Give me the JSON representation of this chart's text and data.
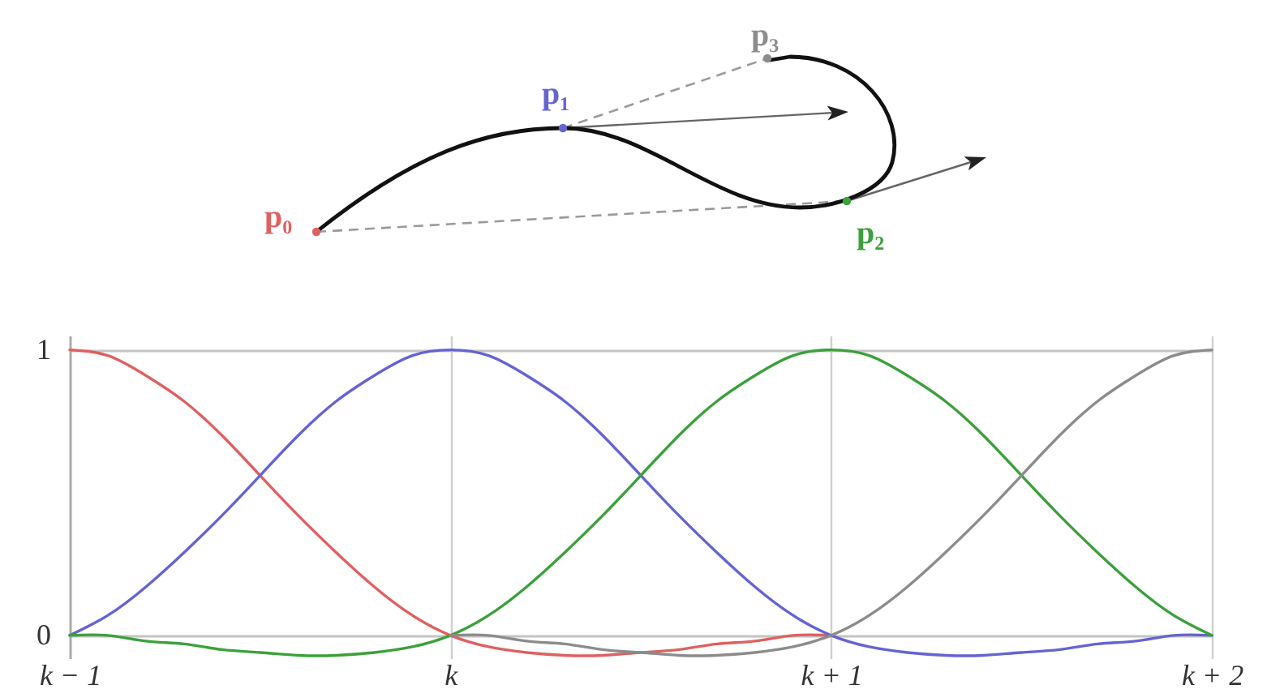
{
  "chart_data": {
    "type": "line",
    "xlim": [
      -1,
      2
    ],
    "xticks": [
      {
        "value": -1,
        "label": "k − 1"
      },
      {
        "value": 0,
        "label": "k"
      },
      {
        "value": 1,
        "label": "k + 1"
      },
      {
        "value": 2,
        "label": "k + 2"
      }
    ],
    "ylim": [
      -0.08,
      1.05
    ],
    "yticks": [
      0,
      1
    ],
    "grid": true,
    "annotations": [
      "p₀",
      "p₁",
      "p₂",
      "p₃"
    ],
    "series": [
      {
        "color": "#e06060",
        "x": [
          -1,
          -0.9,
          -0.8,
          -0.7,
          -0.6,
          -0.5,
          -0.4,
          -0.3,
          -0.2,
          -0.1,
          0,
          0.1,
          0.2,
          0.3,
          0.4,
          0.5,
          0.6,
          0.7,
          0.8,
          0.9,
          1
        ],
        "values": [
          1,
          0.98,
          0.91,
          0.82,
          0.7,
          0.56,
          0.42,
          0.29,
          0.17,
          0.07,
          0,
          -0.04,
          -0.06,
          -0.07,
          -0.07,
          -0.06,
          -0.05,
          -0.03,
          -0.02,
          0,
          0
        ]
      },
      {
        "color": "#6464d2",
        "x": [
          -1,
          -0.9,
          -0.8,
          -0.7,
          -0.6,
          -0.5,
          -0.4,
          -0.3,
          -0.2,
          -0.1,
          0,
          0.1,
          0.2,
          0.3,
          0.4,
          0.5,
          0.6,
          0.7,
          0.8,
          0.9,
          1,
          1.1,
          1.2,
          1.3,
          1.4,
          1.5,
          1.6,
          1.7,
          1.8,
          1.9,
          2
        ],
        "values": [
          0,
          0.07,
          0.17,
          0.29,
          0.42,
          0.56,
          0.7,
          0.82,
          0.91,
          0.98,
          1,
          0.98,
          0.91,
          0.82,
          0.7,
          0.56,
          0.42,
          0.29,
          0.17,
          0.07,
          0,
          -0.04,
          -0.06,
          -0.07,
          -0.07,
          -0.06,
          -0.05,
          -0.03,
          -0.02,
          0,
          0
        ]
      },
      {
        "color": "#3ca03c",
        "x": [
          -1,
          -0.9,
          -0.8,
          -0.7,
          -0.6,
          -0.5,
          -0.4,
          -0.3,
          -0.2,
          -0.1,
          0,
          0.1,
          0.2,
          0.3,
          0.4,
          0.5,
          0.6,
          0.7,
          0.8,
          0.9,
          1,
          1.1,
          1.2,
          1.3,
          1.4,
          1.5,
          1.6,
          1.7,
          1.8,
          1.9,
          2
        ],
        "values": [
          0,
          0,
          -0.02,
          -0.03,
          -0.05,
          -0.06,
          -0.07,
          -0.07,
          -0.06,
          -0.04,
          0,
          0.07,
          0.17,
          0.29,
          0.42,
          0.56,
          0.7,
          0.82,
          0.91,
          0.98,
          1,
          0.98,
          0.91,
          0.82,
          0.7,
          0.56,
          0.42,
          0.29,
          0.17,
          0.07,
          0
        ]
      },
      {
        "color": "#8c8c8c",
        "x": [
          0,
          0.1,
          0.2,
          0.3,
          0.4,
          0.5,
          0.6,
          0.7,
          0.8,
          0.9,
          1,
          1.1,
          1.2,
          1.3,
          1.4,
          1.5,
          1.6,
          1.7,
          1.8,
          1.9,
          2
        ],
        "values": [
          0,
          0,
          -0.02,
          -0.03,
          -0.05,
          -0.06,
          -0.07,
          -0.07,
          -0.06,
          -0.04,
          0,
          0.07,
          0.17,
          0.29,
          0.42,
          0.56,
          0.7,
          0.82,
          0.91,
          0.98,
          1
        ]
      }
    ]
  }
}
